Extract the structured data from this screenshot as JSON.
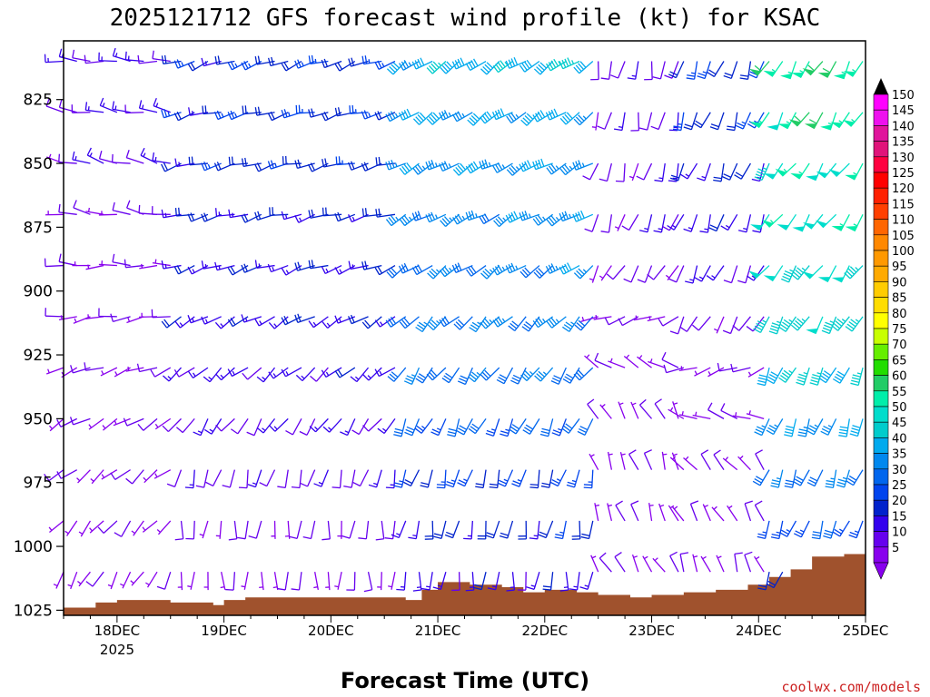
{
  "chart_data": {
    "type": "wind_profile",
    "title": "2025121712 GFS forecast wind profile (kt) for KSAC",
    "xlabel": "Forecast Time (UTC)",
    "credit": "coolwx.com/models",
    "x_ticks": [
      "18DEC",
      "19DEC",
      "20DEC",
      "21DEC",
      "22DEC",
      "23DEC",
      "24DEC",
      "25DEC"
    ],
    "x_year_label": "2025",
    "y_ticks": [
      "825",
      "850",
      "875",
      "900",
      "925",
      "950",
      "975",
      "1000",
      "1025"
    ],
    "y_range_hpa": [
      802,
      1027
    ],
    "x_range_days": [
      17.5,
      25.0
    ],
    "colorbar": {
      "labels": [
        "150",
        "145",
        "140",
        "135",
        "130",
        "125",
        "120",
        "115",
        "110",
        "105",
        "100",
        "95",
        "90",
        "85",
        "80",
        "75",
        "70",
        "65",
        "60",
        "55",
        "50",
        "45",
        "40",
        "35",
        "30",
        "25",
        "20",
        "15",
        "10",
        "5"
      ],
      "colors": [
        "#ff00ff",
        "#ee10ee",
        "#e0149c",
        "#e0147a",
        "#ff0040",
        "#ff0000",
        "#ff2000",
        "#ff4000",
        "#ff6600",
        "#ff8800",
        "#ff9900",
        "#ffaa00",
        "#ffcc00",
        "#ffdd00",
        "#ffff00",
        "#c8ff00",
        "#66ee00",
        "#22dd00",
        "#22cc66",
        "#00eeaa",
        "#00ddcc",
        "#00cccc",
        "#00aaee",
        "#0088ee",
        "#0066ee",
        "#0044ee",
        "#0022cc",
        "#3300ee",
        "#6600ee",
        "#8800ee"
      ]
    },
    "terrain_color": "#a0522d",
    "surface_pressure_hpa": [
      {
        "x": 17.5,
        "p": 1024
      },
      {
        "x": 17.8,
        "p": 1022
      },
      {
        "x": 18.0,
        "p": 1021
      },
      {
        "x": 18.2,
        "p": 1021
      },
      {
        "x": 18.5,
        "p": 1022
      },
      {
        "x": 18.7,
        "p": 1022
      },
      {
        "x": 18.9,
        "p": 1023
      },
      {
        "x": 19.0,
        "p": 1021
      },
      {
        "x": 19.2,
        "p": 1020
      },
      {
        "x": 19.5,
        "p": 1020
      },
      {
        "x": 20.0,
        "p": 1020
      },
      {
        "x": 20.5,
        "p": 1020
      },
      {
        "x": 20.7,
        "p": 1021
      },
      {
        "x": 20.85,
        "p": 1017
      },
      {
        "x": 21.0,
        "p": 1014
      },
      {
        "x": 21.3,
        "p": 1015
      },
      {
        "x": 21.6,
        "p": 1016
      },
      {
        "x": 21.8,
        "p": 1018
      },
      {
        "x": 22.0,
        "p": 1017
      },
      {
        "x": 22.3,
        "p": 1018
      },
      {
        "x": 22.5,
        "p": 1019
      },
      {
        "x": 22.8,
        "p": 1020
      },
      {
        "x": 23.0,
        "p": 1019
      },
      {
        "x": 23.3,
        "p": 1018
      },
      {
        "x": 23.6,
        "p": 1017
      },
      {
        "x": 23.9,
        "p": 1015
      },
      {
        "x": 24.1,
        "p": 1012
      },
      {
        "x": 24.3,
        "p": 1009
      },
      {
        "x": 24.5,
        "p": 1004
      },
      {
        "x": 24.8,
        "p": 1003
      },
      {
        "x": 25.0,
        "p": 1002
      }
    ],
    "wind_levels_hpa": [
      810,
      830,
      850,
      870,
      890,
      910,
      930,
      950,
      970,
      990,
      1010
    ],
    "wind_segments_note": "direction = meteorological direction wind blows FROM (deg), speed in kt",
    "wind_segments": [
      {
        "x_start": 17.5,
        "x_end": 18.6,
        "dir": [
          275,
          280,
          285,
          280,
          270,
          260,
          250,
          240,
          230,
          220,
          210
        ],
        "spd": [
          12,
          12,
          10,
          8,
          6,
          6,
          6,
          6,
          6,
          5,
          5
        ]
      },
      {
        "x_start": 18.6,
        "x_end": 20.7,
        "dir": [
          250,
          255,
          255,
          255,
          250,
          240,
          230,
          215,
          195,
          185,
          180
        ],
        "spd": [
          20,
          20,
          20,
          18,
          16,
          15,
          14,
          12,
          10,
          8,
          6
        ]
      },
      {
        "x_start": 20.7,
        "x_end": 22.5,
        "dir": [
          235,
          235,
          240,
          240,
          235,
          225,
          215,
          205,
          195,
          190,
          185
        ],
        "spd": [
          40,
          38,
          35,
          34,
          33,
          32,
          30,
          28,
          22,
          18,
          14
        ]
      },
      {
        "x_start": 22.5,
        "x_end": 23.3,
        "dir": [
          190,
          190,
          195,
          200,
          210,
          250,
          300,
          330,
          340,
          340,
          330
        ],
        "spd": [
          10,
          10,
          9,
          9,
          8,
          6,
          5,
          5,
          5,
          5,
          5
        ]
      },
      {
        "x_start": 23.3,
        "x_end": 24.1,
        "dir": [
          200,
          200,
          200,
          200,
          205,
          210,
          250,
          290,
          320,
          330,
          340
        ],
        "spd": [
          20,
          20,
          18,
          15,
          12,
          8,
          6,
          6,
          6,
          5,
          5
        ]
      },
      {
        "x_start": 24.1,
        "x_end": 25.0,
        "dir": [
          210,
          210,
          215,
          215,
          215,
          210,
          205,
          200,
          200,
          200,
          200
        ],
        "spd": [
          55,
          55,
          50,
          50,
          48,
          45,
          42,
          35,
          30,
          25,
          20
        ]
      }
    ]
  }
}
